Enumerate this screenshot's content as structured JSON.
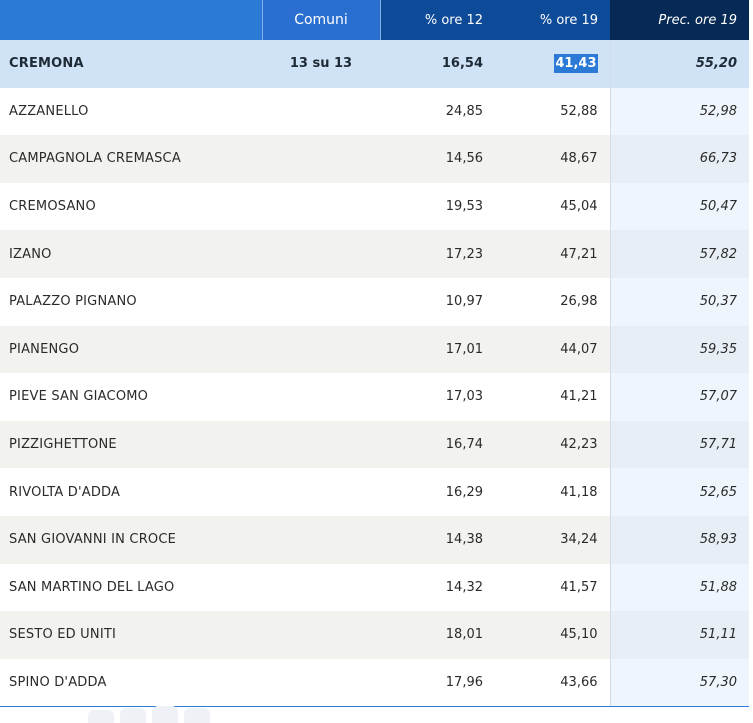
{
  "header": {
    "name": "",
    "comuni": "Comuni",
    "ore12": "% ore 12",
    "ore19": "% ore 19",
    "prec": "Prec. ore 19"
  },
  "total": {
    "name": "CREMONA",
    "comuni": "13 su 13",
    "ore12": "16,54",
    "ore19": "41,43",
    "prec": "55,20"
  },
  "rows": [
    {
      "name": "AZZANELLO",
      "ore12": "24,85",
      "ore19": "52,88",
      "prec": "52,98"
    },
    {
      "name": "CAMPAGNOLA CREMASCA",
      "ore12": "14,56",
      "ore19": "48,67",
      "prec": "66,73"
    },
    {
      "name": "CREMOSANO",
      "ore12": "19,53",
      "ore19": "45,04",
      "prec": "50,47"
    },
    {
      "name": "IZANO",
      "ore12": "17,23",
      "ore19": "47,21",
      "prec": "57,82"
    },
    {
      "name": "PALAZZO PIGNANO",
      "ore12": "10,97",
      "ore19": "26,98",
      "prec": "50,37"
    },
    {
      "name": "PIANENGO",
      "ore12": "17,01",
      "ore19": "44,07",
      "prec": "59,35"
    },
    {
      "name": "PIEVE SAN GIACOMO",
      "ore12": "17,03",
      "ore19": "41,21",
      "prec": "57,07"
    },
    {
      "name": "PIZZIGHETTONE",
      "ore12": "16,74",
      "ore19": "42,23",
      "prec": "57,71"
    },
    {
      "name": "RIVOLTA D'ADDA",
      "ore12": "16,29",
      "ore19": "41,18",
      "prec": "52,65"
    },
    {
      "name": "SAN GIOVANNI IN CROCE",
      "ore12": "14,38",
      "ore19": "34,24",
      "prec": "58,93"
    },
    {
      "name": "SAN MARTINO DEL LAGO",
      "ore12": "14,32",
      "ore19": "41,57",
      "prec": "51,88"
    },
    {
      "name": "SESTO ED UNITI",
      "ore12": "18,01",
      "ore19": "45,10",
      "prec": "51,11"
    },
    {
      "name": "SPINO D'ADDA",
      "ore12": "17,96",
      "ore19": "43,66",
      "prec": "57,30"
    }
  ],
  "colors": {
    "header_light": "#2a7ad6",
    "header_dark": "#0d4a98",
    "header_darkest": "#062a55",
    "total_row": "#cfe2f6",
    "selection": "#2a7ad6"
  }
}
